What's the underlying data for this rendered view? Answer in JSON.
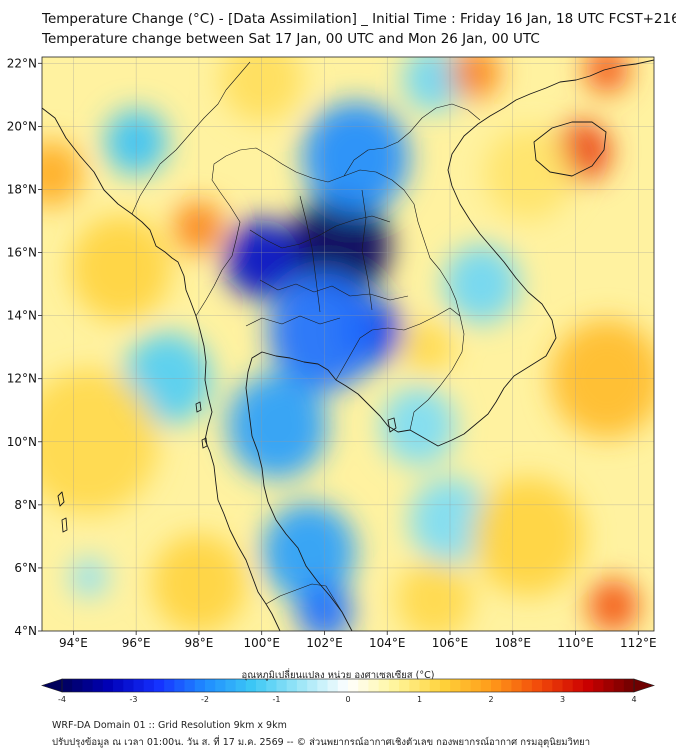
{
  "header": {
    "title_line1": "Temperature Change (°C) - [Data Assimilation] _ Initial Time : Friday 16 Jan, 18 UTC FCST+216",
    "title_line2": "Temperature change between Sat 17 Jan, 00 UTC and Mon 26 Jan, 00 UTC"
  },
  "map": {
    "lon_range": [
      93,
      112.5
    ],
    "lat_range": [
      4,
      22.2
    ],
    "lon_ticks": [
      "94°E",
      "96°E",
      "98°E",
      "100°E",
      "102°E",
      "104°E",
      "106°E",
      "108°E",
      "110°E",
      "112°E"
    ],
    "lon_values": [
      94,
      96,
      98,
      100,
      102,
      104,
      106,
      108,
      110,
      112
    ],
    "lat_ticks": [
      "4°N",
      "6°N",
      "8°N",
      "10°N",
      "12°N",
      "14°N",
      "16°N",
      "18°N",
      "20°N",
      "22°N"
    ],
    "lat_values": [
      4,
      6,
      8,
      10,
      12,
      14,
      16,
      18,
      20,
      22
    ],
    "anomalies": [
      {
        "lon": 102.5,
        "lat": 16.2,
        "value": -4.0,
        "spread": 1.6
      },
      {
        "lon": 100.0,
        "lat": 15.8,
        "value": -3.2,
        "spread": 1.2
      },
      {
        "lon": 103.5,
        "lat": 13.5,
        "value": -3.0,
        "spread": 1.0
      },
      {
        "lon": 102.0,
        "lat": 13.5,
        "value": -2.2,
        "spread": 1.8
      },
      {
        "lon": 103.0,
        "lat": 19.0,
        "value": -2.0,
        "spread": 1.7
      },
      {
        "lon": 100.5,
        "lat": 10.5,
        "value": -1.8,
        "spread": 1.6
      },
      {
        "lon": 101.5,
        "lat": 6.5,
        "value": -1.8,
        "spread": 1.5
      },
      {
        "lon": 102.0,
        "lat": 4.6,
        "value": -2.2,
        "spread": 0.9
      },
      {
        "lon": 97.0,
        "lat": 12.0,
        "value": -1.2,
        "spread": 1.4
      },
      {
        "lon": 96.0,
        "lat": 19.5,
        "value": -1.4,
        "spread": 1.0
      },
      {
        "lon": 105.0,
        "lat": 10.5,
        "value": -0.9,
        "spread": 1.2
      },
      {
        "lon": 105.5,
        "lat": 21.5,
        "value": -1.0,
        "spread": 1.0
      },
      {
        "lon": 107.0,
        "lat": 15.0,
        "value": -1.0,
        "spread": 1.2
      },
      {
        "lon": 106.0,
        "lat": 7.5,
        "value": -0.9,
        "spread": 1.3
      },
      {
        "lon": 94.5,
        "lat": 5.7,
        "value": -0.8,
        "spread": 0.6
      },
      {
        "lon": 110.2,
        "lat": 19.2,
        "value": 2.8,
        "spread": 0.9
      },
      {
        "lon": 111.0,
        "lat": 21.8,
        "value": 2.6,
        "spread": 0.7
      },
      {
        "lon": 106.8,
        "lat": 21.7,
        "value": 2.2,
        "spread": 0.8
      },
      {
        "lon": 98.0,
        "lat": 16.8,
        "value": 2.2,
        "spread": 0.8
      },
      {
        "lon": 93.3,
        "lat": 18.5,
        "value": 1.8,
        "spread": 1.0
      },
      {
        "lon": 111.2,
        "lat": 4.8,
        "value": 2.6,
        "spread": 0.8
      },
      {
        "lon": 111.0,
        "lat": 12.0,
        "value": 1.6,
        "spread": 1.8
      },
      {
        "lon": 108.5,
        "lat": 7.0,
        "value": 1.3,
        "spread": 1.8
      },
      {
        "lon": 94.5,
        "lat": 10.0,
        "value": 1.2,
        "spread": 2.2
      },
      {
        "lon": 95.5,
        "lat": 15.5,
        "value": 1.3,
        "spread": 1.6
      },
      {
        "lon": 98.0,
        "lat": 5.5,
        "value": 1.3,
        "spread": 1.5
      },
      {
        "lon": 105.5,
        "lat": 5.0,
        "value": 1.2,
        "spread": 1.2
      },
      {
        "lon": 100.0,
        "lat": 21.5,
        "value": 1.1,
        "spread": 1.3
      },
      {
        "lon": 108.5,
        "lat": 18.5,
        "value": 1.0,
        "spread": 1.4
      },
      {
        "lon": 105.3,
        "lat": 13.0,
        "value": 1.2,
        "spread": 0.8
      }
    ]
  },
  "colorbar": {
    "label": "อุณหภูมิเปลี่ยนแปลง หน่วย องศาเซลเซียส (°C)",
    "ticks": [
      "-4",
      "-3",
      "-2",
      "-1",
      "0",
      "1",
      "2",
      "3",
      "4"
    ],
    "min": -4,
    "max": 4,
    "steps": 56,
    "stops": [
      "#00005c",
      "#0000b8",
      "#1530ff",
      "#1f8cff",
      "#3cc8f5",
      "#9ee6f7",
      "#ffffff",
      "#fff59a",
      "#ffd23a",
      "#ff9b1a",
      "#f24a0a",
      "#cc0000",
      "#6e0000"
    ]
  },
  "footer": {
    "line1": "WRF-DA Domain 01 :: Grid Resolution 9km x 9km",
    "line2": "ปรับปรุงข้อมูล ณ เวลา 01:00น. วัน ส. ที่ 17 ม.ค. 2569 -- © ส่วนพยากรณ์อากาศเชิงตัวเลข กองพยากรณ์อากาศ กรมอุตุนิยมวิทยา"
  }
}
